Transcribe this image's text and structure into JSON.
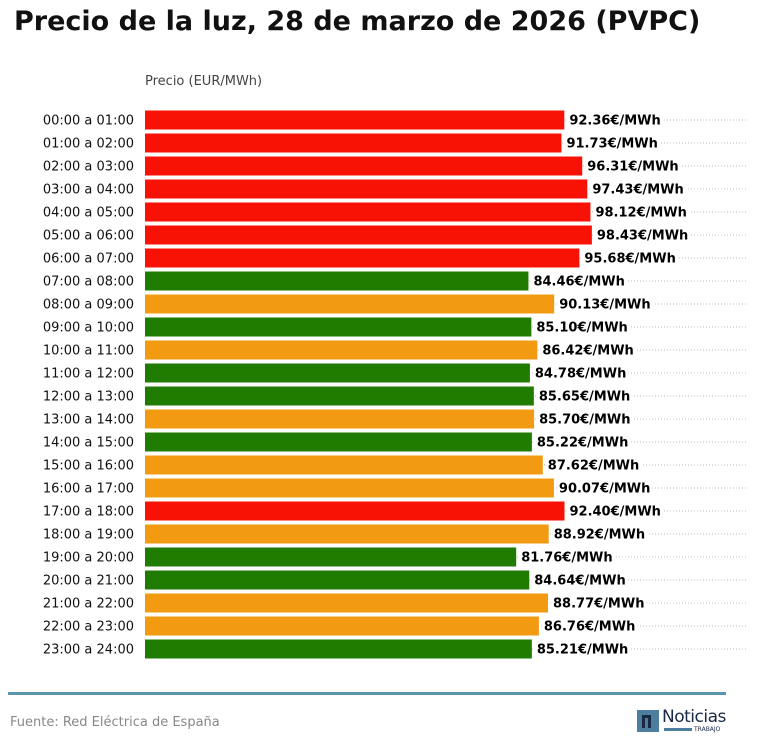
{
  "title": "Precio de la luz, 28 de marzo de 2026 (PVPC)",
  "source": "Fuente: Red Eléctrica de España",
  "logo": {
    "name": "Noticias",
    "sub": "TRABAJO"
  },
  "colors": {
    "high": "#f81205",
    "mid": "#f29b12",
    "low": "#1f7c00"
  },
  "chart_data": {
    "type": "bar",
    "orientation": "horizontal",
    "title": "Precio de la luz, 28 de marzo de 2026 (PVPC)",
    "xlabel": "Precio (EUR/MWh)",
    "unit_suffix": "€/MWh",
    "xlim": [
      0,
      133
    ],
    "grid": "dotted horizontal lines per row",
    "categories": [
      "00:00 a 01:00",
      "01:00 a 02:00",
      "02:00 a 03:00",
      "03:00 a 04:00",
      "04:00 a 05:00",
      "05:00 a 06:00",
      "06:00 a 07:00",
      "07:00 a 08:00",
      "08:00 a 09:00",
      "09:00 a 10:00",
      "10:00 a 11:00",
      "11:00 a 12:00",
      "12:00 a 13:00",
      "13:00 a 14:00",
      "14:00 a 15:00",
      "15:00 a 16:00",
      "16:00 a 17:00",
      "17:00 a 18:00",
      "18:00 a 19:00",
      "19:00 a 20:00",
      "20:00 a 21:00",
      "21:00 a 22:00",
      "22:00 a 23:00",
      "23:00 a 24:00"
    ],
    "values": [
      92.36,
      91.73,
      96.31,
      97.43,
      98.12,
      98.43,
      95.68,
      84.46,
      90.13,
      85.1,
      86.42,
      84.78,
      85.65,
      85.7,
      85.22,
      87.62,
      90.07,
      92.4,
      88.92,
      81.76,
      84.64,
      88.77,
      86.76,
      85.21
    ],
    "levels": [
      "high",
      "high",
      "high",
      "high",
      "high",
      "high",
      "high",
      "low",
      "mid",
      "low",
      "mid",
      "low",
      "low",
      "mid",
      "low",
      "mid",
      "mid",
      "high",
      "mid",
      "low",
      "low",
      "mid",
      "mid",
      "low"
    ]
  }
}
